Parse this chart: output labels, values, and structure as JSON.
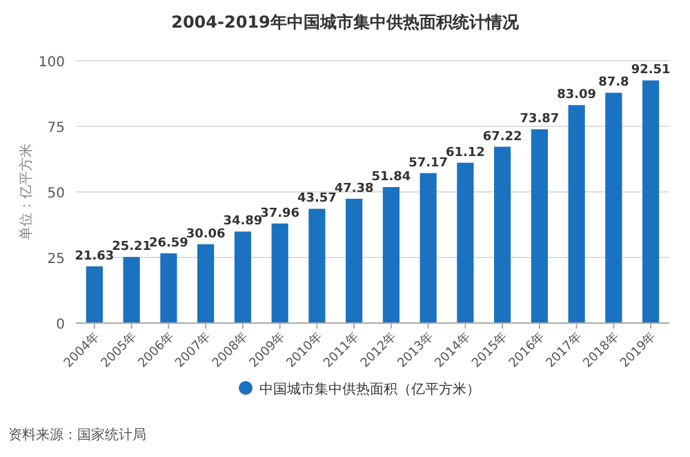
{
  "chart_data": {
    "type": "bar",
    "title": "2004-2019年中国城市集中供热面积统计情况",
    "ylabel": "单位：亿平方米",
    "categories": [
      "2004年",
      "2005年",
      "2006年",
      "2007年",
      "2008年",
      "2009年",
      "2010年",
      "2011年",
      "2012年",
      "2013年",
      "2014年",
      "2015年",
      "2016年",
      "2017年",
      "2018年",
      "2019年"
    ],
    "series": [
      {
        "name": "中国城市集中供热面积（亿平方米）",
        "color": "#1a72c0",
        "values": [
          21.63,
          25.21,
          26.59,
          30.06,
          34.89,
          37.96,
          43.57,
          47.38,
          51.84,
          57.17,
          61.12,
          67.22,
          73.87,
          83.09,
          87.8,
          92.51
        ]
      }
    ],
    "ylim": [
      0,
      100
    ],
    "yticks": [
      0,
      25,
      50,
      75,
      100
    ],
    "grid": "y",
    "legend": "bottom",
    "data_labels": true,
    "annotations": [
      "资料来源：国家统计局"
    ]
  }
}
